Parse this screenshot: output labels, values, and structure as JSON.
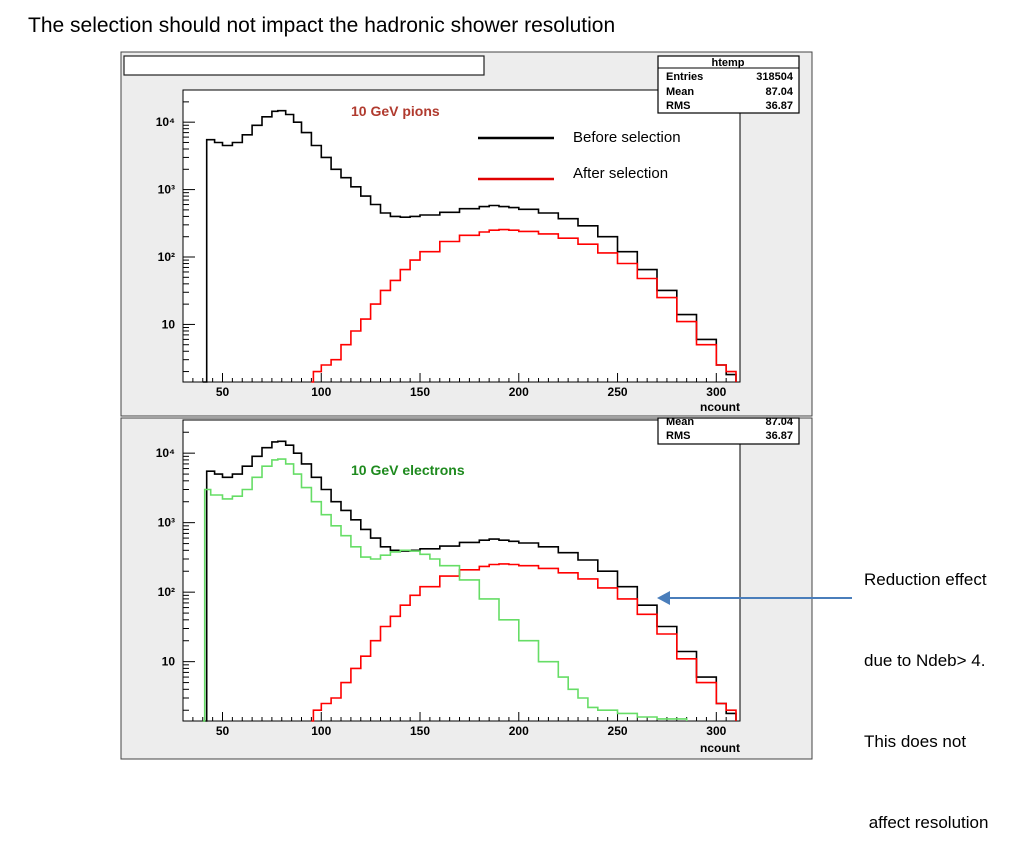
{
  "slide": {
    "title": "The selection should not impact the hadronic shower resolution",
    "side_note_lines": [
      "Reduction effect",
      "due to Ndeb> 4.",
      "This does not",
      " affect resolution"
    ],
    "arrow_color": "#4a7ebb"
  },
  "stats_box": {
    "title": "htemp",
    "rows": [
      {
        "label": "Entries",
        "value": "318504"
      },
      {
        "label": "Mean",
        "value": "87.04"
      },
      {
        "label": "RMS",
        "value": "36.87"
      }
    ],
    "rows_partial": [
      {
        "label": "Mean",
        "value": "87.04"
      },
      {
        "label": "RMS",
        "value": "36.87"
      }
    ]
  },
  "colors": {
    "before": "#000000",
    "after": "#ff0000",
    "electrons": "#66dd66",
    "pion_label": "#b03a2e",
    "electron_label": "#1e8a1e",
    "legend_red": "#e00000"
  },
  "chart_data": [
    {
      "type": "line",
      "step": true,
      "xlabel": "ncount",
      "ylabel": "",
      "log_y": true,
      "xlim": [
        30,
        312
      ],
      "ylim": [
        1.4,
        30000
      ],
      "x_ticks": [
        "50",
        "100",
        "150",
        "200",
        "250",
        "300"
      ],
      "y_ticks": [
        "10",
        "10²",
        "10³",
        "10⁴"
      ],
      "annotation": "10 GeV pions",
      "legend": {
        "placement": "top-right",
        "entries": [
          "Before selection",
          "After selection"
        ]
      },
      "series": [
        {
          "name": "Before selection",
          "color": "#000000",
          "x": [
            40,
            42,
            46,
            50,
            55,
            60,
            65,
            70,
            75,
            78,
            82,
            86,
            90,
            95,
            100,
            105,
            110,
            115,
            120,
            125,
            130,
            135,
            140,
            145,
            150,
            160,
            170,
            180,
            185,
            190,
            195,
            200,
            210,
            220,
            230,
            240,
            250,
            260,
            270,
            280,
            290,
            300,
            305,
            310
          ],
          "y": [
            1.4,
            5500,
            5000,
            4500,
            5000,
            6500,
            9000,
            12000,
            14500,
            14800,
            13000,
            10000,
            7000,
            4500,
            3000,
            2000,
            1500,
            1100,
            800,
            600,
            450,
            400,
            390,
            400,
            420,
            460,
            520,
            560,
            580,
            560,
            540,
            510,
            450,
            370,
            290,
            200,
            120,
            65,
            32,
            14,
            6,
            2.5,
            1.8,
            1.4
          ]
        },
        {
          "name": "After selection",
          "color": "#ff0000",
          "x": [
            95,
            96,
            100,
            105,
            110,
            115,
            120,
            125,
            130,
            135,
            140,
            145,
            150,
            160,
            170,
            180,
            185,
            190,
            195,
            200,
            210,
            220,
            230,
            240,
            250,
            260,
            270,
            280,
            290,
            300,
            305,
            310
          ],
          "y": [
            1.4,
            2,
            2.5,
            3,
            5,
            8,
            12,
            20,
            32,
            45,
            65,
            90,
            120,
            170,
            210,
            235,
            250,
            255,
            250,
            240,
            220,
            190,
            155,
            115,
            80,
            48,
            25,
            11,
            5,
            2.5,
            2,
            1.4
          ]
        }
      ]
    },
    {
      "type": "line",
      "step": true,
      "xlabel": "ncount",
      "ylabel": "",
      "log_y": true,
      "xlim": [
        30,
        312
      ],
      "ylim": [
        1.4,
        30000
      ],
      "x_ticks": [
        "50",
        "100",
        "150",
        "200",
        "250",
        "300"
      ],
      "y_ticks": [
        "10",
        "10²",
        "10³",
        "10⁴"
      ],
      "annotation": "10 GeV electrons",
      "series": [
        {
          "name": "Before selection",
          "color": "#000000",
          "x": [
            40,
            42,
            46,
            50,
            55,
            60,
            65,
            70,
            75,
            78,
            82,
            86,
            90,
            95,
            100,
            105,
            110,
            115,
            120,
            125,
            130,
            135,
            140,
            145,
            150,
            160,
            170,
            180,
            185,
            190,
            195,
            200,
            210,
            220,
            230,
            240,
            250,
            260,
            270,
            280,
            290,
            300,
            305,
            310
          ],
          "y": [
            1.4,
            5500,
            5000,
            4500,
            5000,
            6500,
            9000,
            12000,
            14500,
            14800,
            13000,
            10000,
            7000,
            4500,
            3000,
            2000,
            1500,
            1100,
            800,
            600,
            450,
            400,
            390,
            400,
            420,
            460,
            520,
            560,
            580,
            560,
            540,
            510,
            450,
            370,
            290,
            200,
            120,
            65,
            32,
            14,
            6,
            2.5,
            1.8,
            1.4
          ]
        },
        {
          "name": "After selection",
          "color": "#ff0000",
          "x": [
            95,
            96,
            100,
            105,
            110,
            115,
            120,
            125,
            130,
            135,
            140,
            145,
            150,
            160,
            170,
            180,
            185,
            190,
            195,
            200,
            210,
            220,
            230,
            240,
            250,
            260,
            270,
            280,
            290,
            300,
            305,
            310
          ],
          "y": [
            1.4,
            2,
            2.5,
            3,
            5,
            8,
            12,
            20,
            32,
            45,
            65,
            90,
            120,
            170,
            210,
            235,
            250,
            255,
            250,
            240,
            220,
            190,
            155,
            115,
            80,
            48,
            25,
            11,
            5,
            2.5,
            2,
            1.4
          ]
        },
        {
          "name": "10 GeV electrons",
          "color": "#66dd66",
          "x": [
            40,
            41,
            44,
            50,
            55,
            60,
            65,
            70,
            75,
            78,
            82,
            86,
            90,
            95,
            100,
            105,
            110,
            115,
            120,
            125,
            130,
            135,
            140,
            145,
            150,
            155,
            160,
            170,
            180,
            190,
            200,
            210,
            220,
            225,
            230,
            235,
            240,
            250,
            260,
            270,
            280,
            285
          ],
          "y": [
            1.4,
            3000,
            2500,
            2200,
            2400,
            3000,
            4500,
            6500,
            8000,
            8200,
            7000,
            5000,
            3200,
            2000,
            1300,
            900,
            650,
            450,
            320,
            300,
            340,
            380,
            400,
            390,
            350,
            300,
            240,
            150,
            80,
            40,
            20,
            10,
            6,
            4,
            3,
            2.2,
            2,
            1.8,
            1.6,
            1.5,
            1.5,
            1.4
          ]
        }
      ]
    }
  ]
}
